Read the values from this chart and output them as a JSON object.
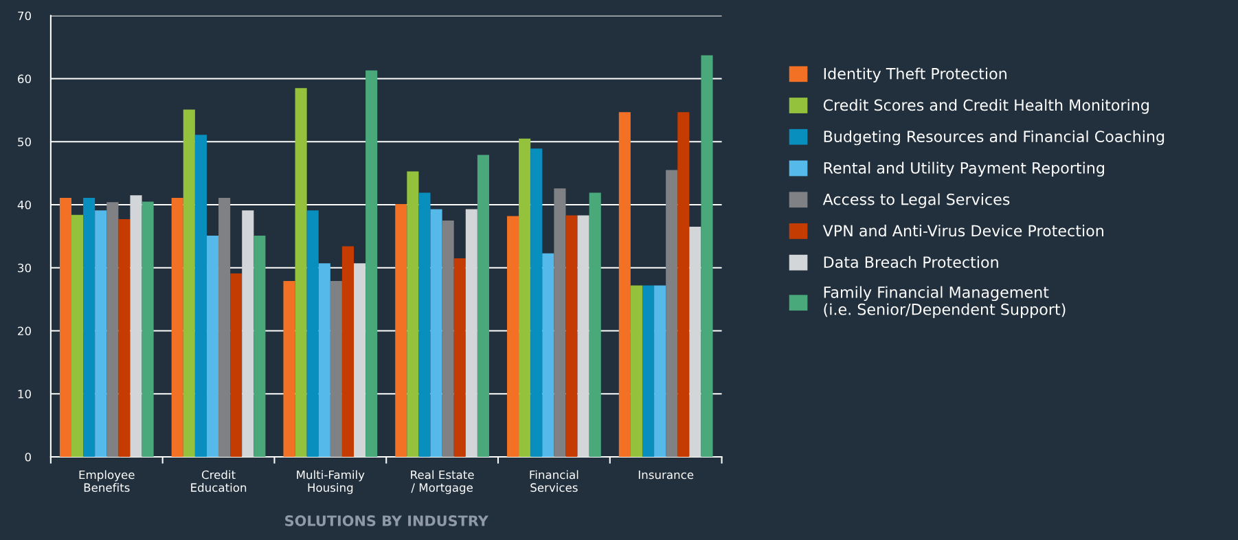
{
  "chart_data": {
    "type": "bar",
    "xlabel": "SOLUTIONS BY INDUSTRY",
    "categories": [
      "Employee\nBenefits",
      "Credit\nEducation",
      "Multi-Family\nHousing",
      "Real Estate\n/ Mortgage",
      "Financial\nServices",
      "Insurance"
    ],
    "series": [
      {
        "name": "Identity Theft Protection",
        "color": "#f37124",
        "values": [
          41.1,
          41.1,
          27.9,
          40.1,
          38.2,
          54.7
        ]
      },
      {
        "name": "Credit Scores and Credit Health Monitoring",
        "color": "#95c23d",
        "values": [
          38.4,
          55.1,
          58.5,
          45.3,
          50.5,
          27.2
        ]
      },
      {
        "name": "Budgeting Resources and Financial Coaching",
        "color": "#088fbe",
        "values": [
          41.1,
          51.1,
          39.1,
          41.9,
          48.9,
          27.2
        ]
      },
      {
        "name": "Rental and Utility Payment Reporting",
        "color": "#55b9ea",
        "values": [
          39.1,
          35.1,
          30.7,
          39.3,
          32.3,
          27.2
        ]
      },
      {
        "name": "Access to Legal Services",
        "color": "#808184",
        "values": [
          40.4,
          41.1,
          27.9,
          37.5,
          42.6,
          45.5
        ]
      },
      {
        "name": "VPN and Anti-Virus Device Protection",
        "color": "#c43c01",
        "values": [
          37.7,
          29.1,
          33.4,
          31.5,
          38.3,
          54.7
        ]
      },
      {
        "name": "Data Breach Protection",
        "color": "#d3d6d9",
        "values": [
          41.5,
          39.1,
          30.7,
          39.3,
          38.3,
          36.5
        ]
      },
      {
        "name": "Family Financial Management\n(i.e. Senior/Dependent Support)",
        "color": "#4aa97a",
        "values": [
          40.5,
          35.1,
          61.3,
          47.9,
          41.9,
          63.7
        ]
      }
    ],
    "ylim": [
      0,
      70
    ],
    "yticks": [
      0,
      10,
      20,
      30,
      40,
      50,
      60,
      70
    ],
    "grid": "y",
    "legend": "right"
  }
}
